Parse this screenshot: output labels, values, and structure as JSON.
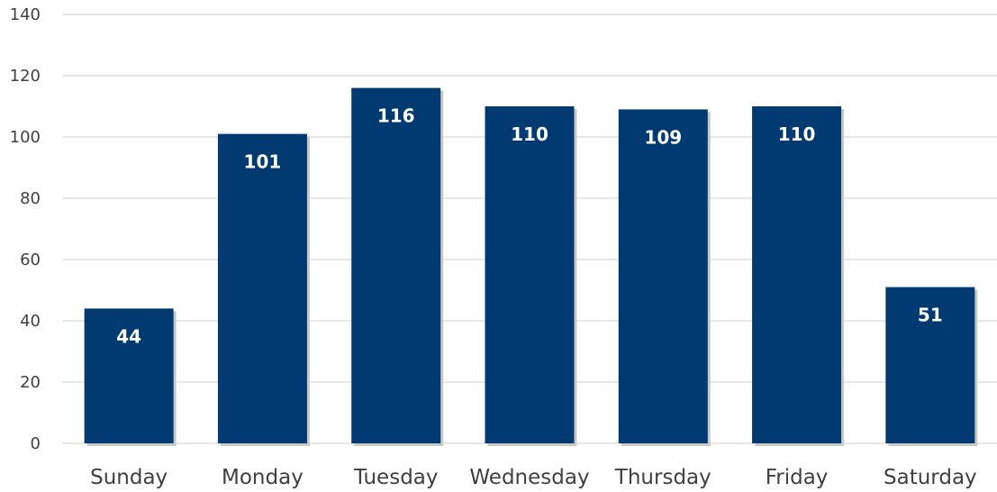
{
  "chart_data": {
    "type": "bar",
    "categories": [
      "Sunday",
      "Monday",
      "Tuesday",
      "Wednesday",
      "Thursday",
      "Friday",
      "Saturday"
    ],
    "values": [
      44,
      101,
      116,
      110,
      109,
      110,
      51
    ],
    "value_labels": [
      "44",
      "101",
      "116",
      "110",
      "109",
      "110",
      "51"
    ],
    "y_ticks": [
      "0",
      "20",
      "40",
      "60",
      "80",
      "100",
      "120",
      "140"
    ],
    "ylim": [
      0,
      140
    ],
    "grid": true,
    "title": "",
    "xlabel": "",
    "ylabel": "",
    "colors": {
      "bar": "#003a70",
      "value_label": "#ffffff",
      "gridline": "#d9d9d9",
      "axis_text": "#404040"
    }
  }
}
